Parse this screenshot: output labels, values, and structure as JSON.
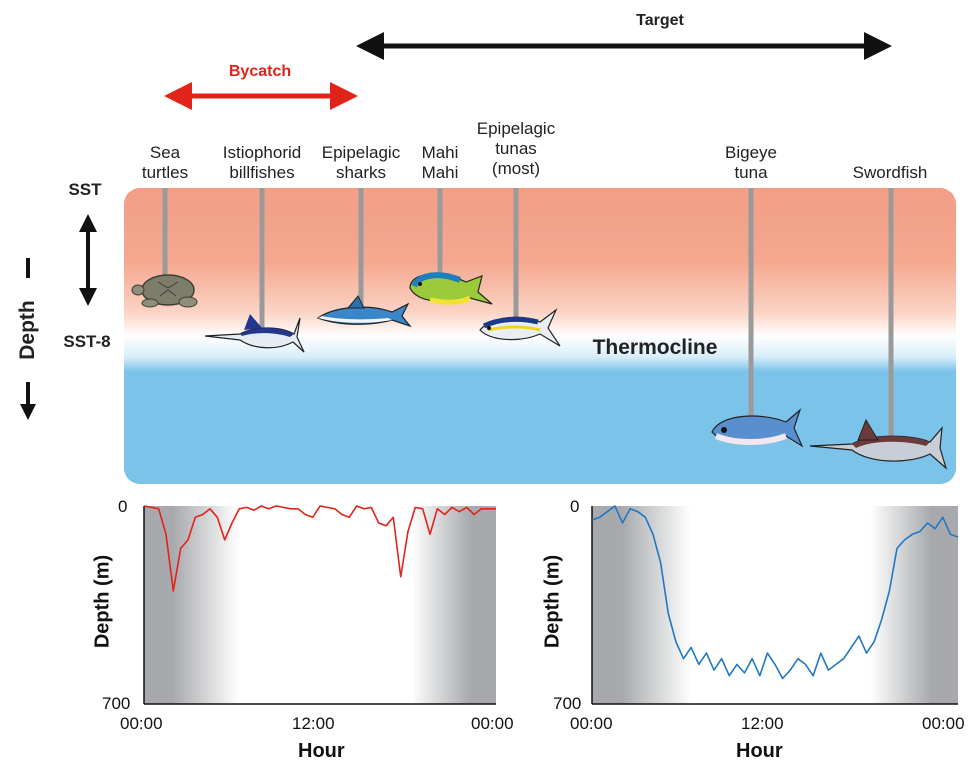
{
  "arrows": {
    "target": {
      "label": "Target",
      "color": "#111111"
    },
    "bycatch": {
      "label": "Bycatch",
      "color": "#e2231a"
    }
  },
  "species": [
    {
      "label": "Sea\nturtles"
    },
    {
      "label": "Istiophorid\nbillfishes"
    },
    {
      "label": "Epipelagic\nsharks"
    },
    {
      "label": "Mahi\nMahi"
    },
    {
      "label": "Epipelagic\ntunas\n(most)"
    },
    {
      "label": "Bigeye\ntuna"
    },
    {
      "label": "Swordfish"
    }
  ],
  "left_axis": {
    "sst": "SST",
    "sst8": "SST-8",
    "depth": "Depth"
  },
  "thermocline_label": "Thermocline",
  "colors": {
    "warm": "#f29e87",
    "cold": "#7cc3ea",
    "red_series": "#e2231a",
    "blue_series": "#1f78c4",
    "night_shade": "#a7a9ac"
  },
  "chart_data": [
    {
      "type": "line",
      "series": [
        {
          "color": "#e2231a",
          "x": [
            0,
            1,
            1.5,
            2,
            2.5,
            3,
            3.5,
            4,
            4.5,
            5,
            5.5,
            6,
            6.5,
            7,
            7.5,
            8,
            8.5,
            9,
            9.5,
            10,
            10.5,
            11,
            11.5,
            12,
            12.5,
            13,
            13.5,
            14,
            14.5,
            15,
            15.5,
            16,
            16.5,
            17,
            17.5,
            18,
            18.5,
            19,
            19.5,
            20,
            20.5,
            21,
            21.5,
            22,
            22.5,
            23,
            23.5,
            24
          ],
          "values": [
            0,
            10,
            100,
            300,
            150,
            120,
            40,
            30,
            10,
            40,
            120,
            60,
            10,
            5,
            15,
            0,
            10,
            0,
            5,
            10,
            10,
            30,
            40,
            0,
            5,
            10,
            30,
            40,
            0,
            10,
            5,
            60,
            70,
            40,
            250,
            90,
            5,
            10,
            100,
            10,
            30,
            5,
            20,
            5,
            30,
            10,
            10,
            10
          ]
        }
      ],
      "xlabel": "Hour",
      "ylabel": "Depth (m)",
      "x_ticks": [
        "00:00",
        "12:00",
        "00:00"
      ],
      "y_ticks": [
        "0",
        "700"
      ],
      "ylim": [
        700,
        0
      ]
    },
    {
      "type": "line",
      "series": [
        {
          "color": "#1f78c4",
          "x": [
            0,
            0.5,
            1,
            1.5,
            2,
            2.5,
            3,
            3.5,
            4,
            4.5,
            5,
            5.5,
            6,
            6.5,
            7,
            7.5,
            8,
            8.5,
            9,
            9.5,
            10,
            10.5,
            11,
            11.5,
            12,
            12.5,
            13,
            13.5,
            14,
            14.5,
            15,
            15.5,
            16,
            16.5,
            17,
            17.5,
            18,
            18.5,
            19,
            19.5,
            20,
            20.5,
            21,
            21.5,
            22,
            22.5,
            23,
            23.5,
            24
          ],
          "values": [
            50,
            40,
            20,
            0,
            60,
            10,
            20,
            40,
            100,
            200,
            380,
            480,
            540,
            500,
            560,
            520,
            580,
            540,
            600,
            560,
            590,
            540,
            600,
            520,
            560,
            610,
            580,
            540,
            560,
            600,
            520,
            580,
            560,
            540,
            500,
            460,
            520,
            480,
            400,
            300,
            150,
            120,
            100,
            90,
            60,
            80,
            40,
            100,
            110
          ]
        }
      ],
      "xlabel": "Hour",
      "ylabel": "Depth (m)",
      "x_ticks": [
        "00:00",
        "12:00",
        "00:00"
      ],
      "y_ticks": [
        "0",
        "700"
      ],
      "ylim": [
        700,
        0
      ]
    }
  ]
}
